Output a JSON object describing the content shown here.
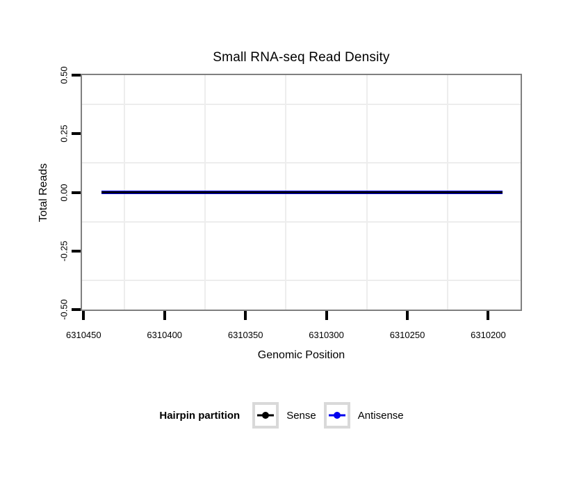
{
  "chart_data": {
    "type": "line",
    "title": "Small RNA-seq Read Density",
    "xlabel": "Genomic Position",
    "ylabel": "Total Reads",
    "x_axis_reversed": true,
    "xlim": [
      6310451,
      6310180
    ],
    "ylim": [
      -0.5,
      0.5
    ],
    "x_ticks": [
      6310450,
      6310400,
      6310350,
      6310300,
      6310250,
      6310200
    ],
    "x_tick_labels": [
      "6310450",
      "6310400",
      "6310350",
      "6310300",
      "6310250",
      "6310200"
    ],
    "y_ticks": [
      0.5,
      0.25,
      0,
      -0.25,
      -0.5
    ],
    "y_tick_labels": [
      "0.50",
      "0.25",
      "0.00",
      "-0.25",
      "-0.50"
    ],
    "grid": {
      "major": false,
      "minor": true,
      "minor_color": "#ededed"
    },
    "series": [
      {
        "name": "Sense",
        "color": "#000000",
        "x": [
          6310439,
          6310191
        ],
        "y": [
          0,
          0
        ]
      },
      {
        "name": "Antisense",
        "color": "#0000EE",
        "x": [
          6310439,
          6310191
        ],
        "y": [
          0,
          0
        ]
      }
    ],
    "legend": {
      "title": "Hairpin partition",
      "position": "bottom"
    },
    "colors": {
      "panel_border": "#7f7f7f",
      "tick": "#000000",
      "legend_key_border": "#d9d9d9",
      "background": "#ffffff"
    }
  }
}
